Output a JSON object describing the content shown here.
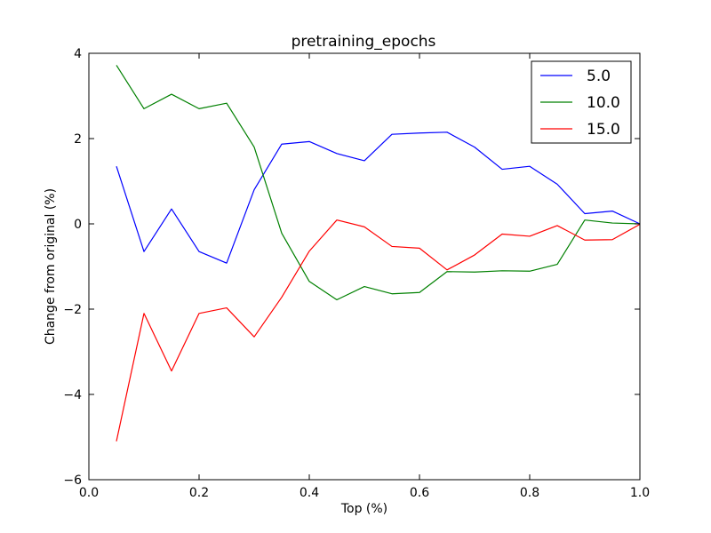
{
  "chart_data": {
    "type": "line",
    "title": "pretraining_epochs",
    "xlabel": "Top (%)",
    "ylabel": "Change from original (%)",
    "xlim": [
      0.0,
      1.0
    ],
    "ylim": [
      -6,
      4
    ],
    "xticks": [
      0.0,
      0.2,
      0.4,
      0.6,
      0.8,
      1.0
    ],
    "xtick_labels": [
      "0.0",
      "0.2",
      "0.4",
      "0.6",
      "0.8",
      "1.0"
    ],
    "yticks": [
      -6,
      -4,
      -2,
      0,
      2,
      4
    ],
    "ytick_labels": [
      "−6",
      "−4",
      "−2",
      "0",
      "2",
      "4"
    ],
    "grid": false,
    "legend_position": "top-right",
    "x": [
      0.05,
      0.1,
      0.15,
      0.2,
      0.25,
      0.3,
      0.35,
      0.4,
      0.45,
      0.5,
      0.55,
      0.6,
      0.65,
      0.7,
      0.75,
      0.8,
      0.85,
      0.9,
      0.95,
      1.0
    ],
    "series": [
      {
        "name": "5.0",
        "color": "#0000ff",
        "values": [
          1.35,
          -0.65,
          0.35,
          -0.65,
          -0.92,
          0.8,
          1.87,
          1.93,
          1.65,
          1.48,
          2.1,
          2.13,
          2.15,
          1.8,
          1.28,
          1.35,
          0.93,
          0.24,
          0.3,
          0.0
        ]
      },
      {
        "name": "10.0",
        "color": "#008000",
        "values": [
          3.72,
          2.7,
          3.04,
          2.7,
          2.83,
          1.8,
          -0.22,
          -1.35,
          -1.78,
          -1.47,
          -1.64,
          -1.61,
          -1.12,
          -1.13,
          -1.1,
          -1.11,
          -0.95,
          0.09,
          0.02,
          0.0
        ]
      },
      {
        "name": "15.0",
        "color": "#ff0000",
        "values": [
          -5.1,
          -2.1,
          -3.45,
          -2.1,
          -1.97,
          -2.65,
          -1.72,
          -0.64,
          0.09,
          -0.07,
          -0.53,
          -0.57,
          -1.08,
          -0.73,
          -0.24,
          -0.29,
          -0.04,
          -0.38,
          -0.37,
          -0.01
        ]
      }
    ]
  }
}
